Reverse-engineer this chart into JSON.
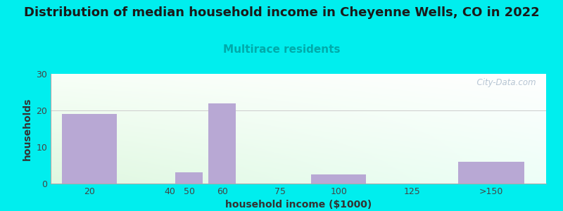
{
  "title": "Distribution of median household income in Cheyenne Wells, CO in 2022",
  "subtitle": "Multirace residents",
  "xlabel": "household income ($1000)",
  "ylabel": "households",
  "bg_color": "#00EEEE",
  "bar_color": "#B8A8D4",
  "bar_positions": [
    0.0,
    2.2,
    3.1,
    4.0,
    5.2,
    6.8,
    8.8,
    10.8
  ],
  "bar_heights": [
    19,
    0,
    3,
    22,
    0,
    2.5,
    0,
    6
  ],
  "bar_widths": [
    1.5,
    1.5,
    0.75,
    0.75,
    1.5,
    1.5,
    1.5,
    1.8
  ],
  "xtick_positions": [
    0.75,
    2.95,
    3.475,
    4.375,
    5.95,
    7.55,
    9.55,
    11.7
  ],
  "xtick_labels": [
    "20",
    "40",
    "50",
    "60",
    "75",
    "100",
    "125",
    ">150"
  ],
  "xlim": [
    -0.3,
    13.2
  ],
  "ylim": [
    0,
    30
  ],
  "yticks": [
    0,
    10,
    20,
    30
  ],
  "title_fontsize": 13,
  "subtitle_fontsize": 11,
  "subtitle_color": "#00AAAA",
  "axis_label_fontsize": 10,
  "tick_fontsize": 9,
  "watermark": "  City-Data.com",
  "watermark_color": "#aabbcc",
  "gradient_topleft": [
    0.97,
    1.0,
    0.97
  ],
  "gradient_topright": [
    1.0,
    1.0,
    1.0
  ],
  "gradient_bottomleft": [
    0.88,
    0.97,
    0.88
  ],
  "gradient_bottomright": [
    0.93,
    1.0,
    0.97
  ]
}
